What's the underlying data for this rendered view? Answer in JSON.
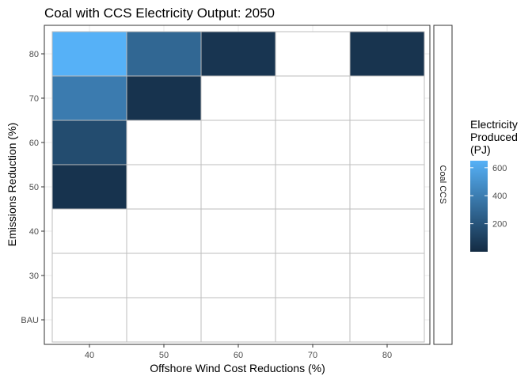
{
  "chart_data": {
    "type": "heatmap",
    "title": "Coal with CCS Electricity Output: 2050",
    "xlabel": "Offshore Wind Cost Reductions (%)",
    "ylabel": "Emissions Reduction (%)",
    "x_categories": [
      "40",
      "50",
      "60",
      "70",
      "80"
    ],
    "y_categories": [
      "BAU",
      "30",
      "40",
      "50",
      "60",
      "70",
      "80"
    ],
    "facet_label": "Coal CCS",
    "legend": {
      "title_lines": [
        "Electricity",
        "Produced",
        "(PJ)"
      ],
      "ticks": [
        200,
        400,
        600
      ],
      "range": [
        0,
        650
      ],
      "low_color": "#132B43",
      "high_color": "#56B1F7",
      "position": "right"
    },
    "cells": [
      {
        "x": "40",
        "y": "80",
        "value": 660
      },
      {
        "x": "50",
        "y": "80",
        "value": 290
      },
      {
        "x": "60",
        "y": "80",
        "value": 50
      },
      {
        "x": "80",
        "y": "80",
        "value": 45
      },
      {
        "x": "40",
        "y": "70",
        "value": 390
      },
      {
        "x": "50",
        "y": "70",
        "value": 40
      },
      {
        "x": "40",
        "y": "60",
        "value": 160
      },
      {
        "x": "40",
        "y": "50",
        "value": 40
      }
    ],
    "empty_color": "#ffffff",
    "grid": true
  }
}
